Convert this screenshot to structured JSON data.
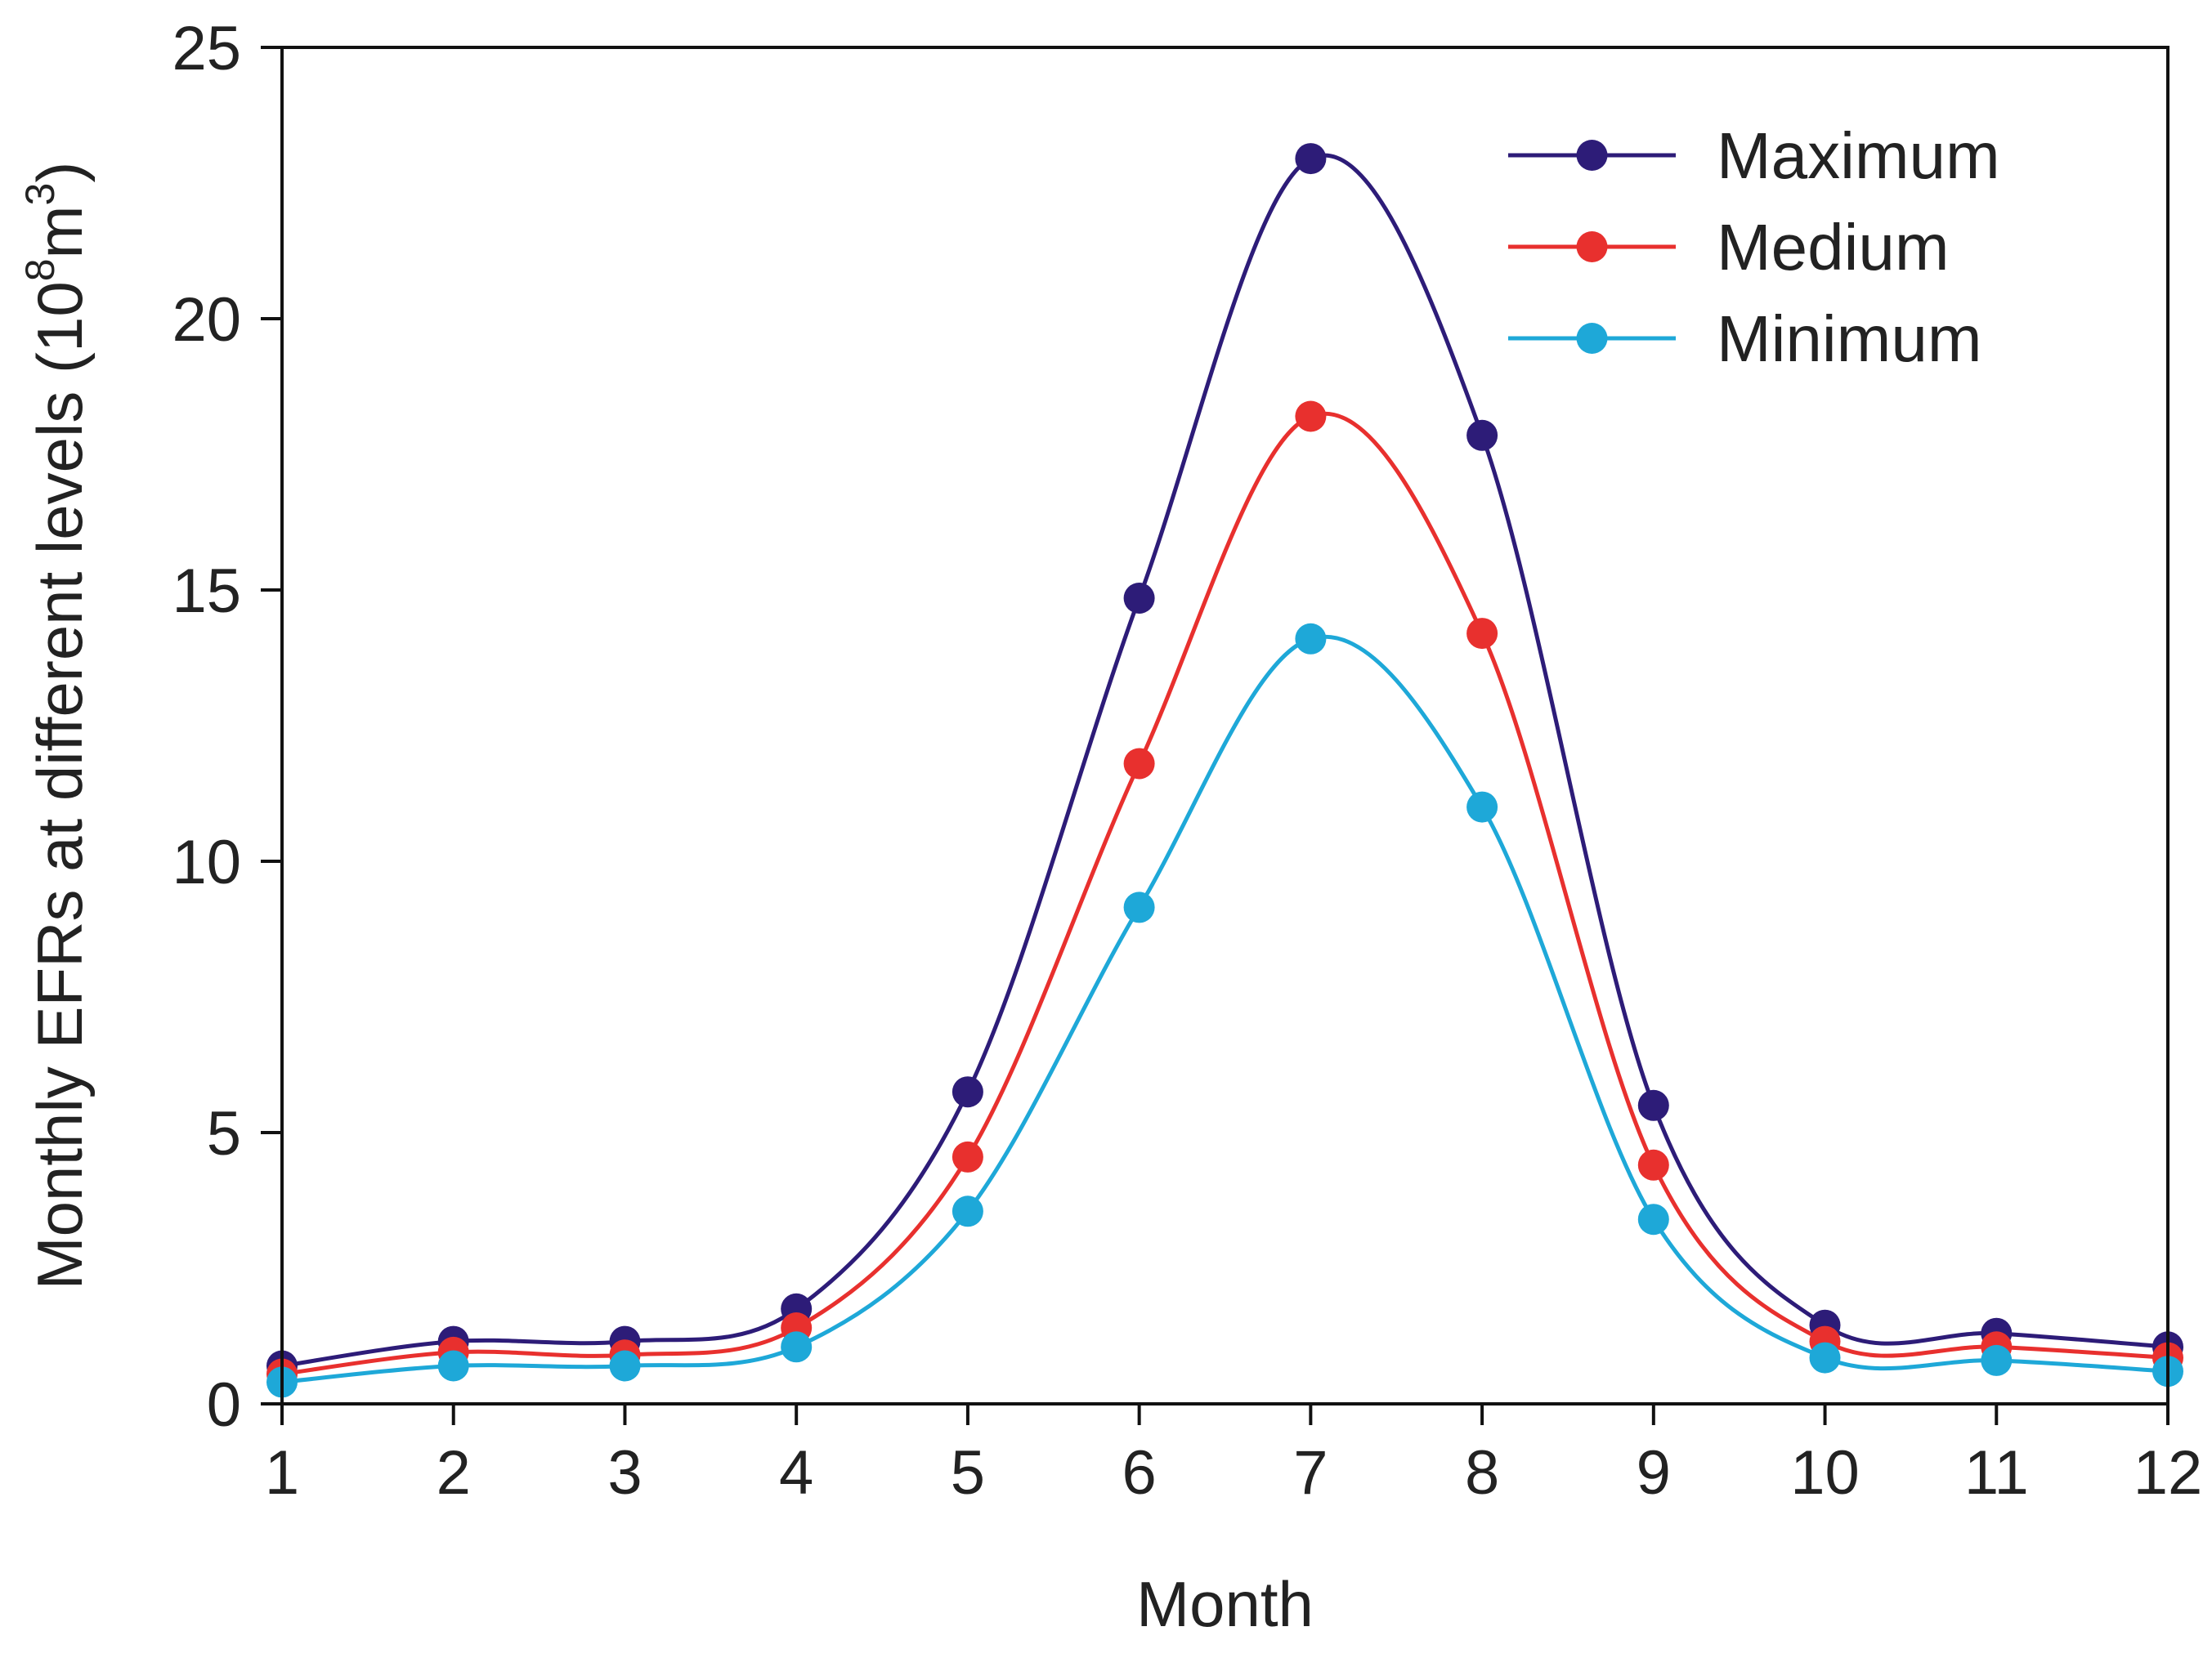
{
  "chart_data": {
    "type": "line",
    "xlabel": "Month",
    "ylabel": {
      "prefix": "Monthly EFRs at different levels (10",
      "exp1": "8",
      "mid": "m",
      "exp2": "3",
      "suffix": ")"
    },
    "x": [
      1,
      2,
      3,
      4,
      5,
      6,
      7,
      8,
      9,
      10,
      11,
      12
    ],
    "x_tick_labels": [
      "1",
      "2",
      "3",
      "4",
      "5",
      "6",
      "7",
      "8",
      "9",
      "10",
      "11",
      "12"
    ],
    "y_tick_labels": [
      "0",
      "5",
      "10",
      "15",
      "20",
      "25"
    ],
    "y_ticks": [
      0,
      5,
      10,
      15,
      20,
      25
    ],
    "xlim": [
      1,
      12
    ],
    "ylim": [
      0,
      25
    ],
    "grid": false,
    "legend_position": "top-right",
    "series": [
      {
        "name": "Maximum",
        "color": "#2d1c78",
        "values": [
          0.7,
          1.15,
          1.15,
          1.75,
          5.75,
          14.85,
          22.95,
          17.85,
          5.5,
          1.45,
          1.3,
          1.05
        ]
      },
      {
        "name": "Medium",
        "color": "#e8302e",
        "values": [
          0.55,
          0.95,
          0.9,
          1.4,
          4.55,
          11.8,
          18.2,
          14.2,
          4.4,
          1.15,
          1.05,
          0.85
        ]
      },
      {
        "name": "Minimum",
        "color": "#1ea8d8",
        "values": [
          0.4,
          0.7,
          0.7,
          1.05,
          3.55,
          9.15,
          14.1,
          11.0,
          3.4,
          0.85,
          0.8,
          0.6
        ]
      }
    ]
  }
}
